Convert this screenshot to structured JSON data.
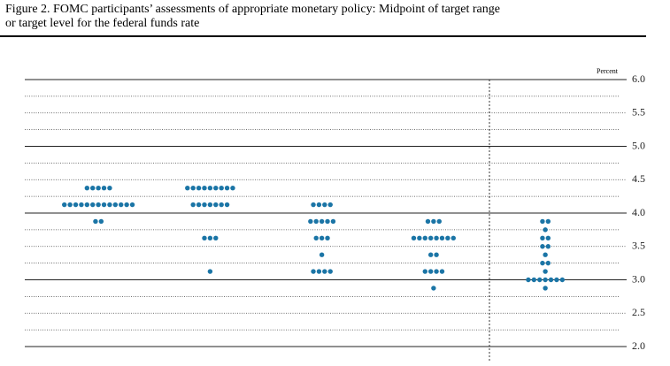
{
  "chart_data": {
    "type": "dot",
    "title_lines": [
      "Figure 2. FOMC participants’ assessments of appropriate monetary policy: Midpoint of target range",
      "or target level for the federal funds rate"
    ],
    "unit_label": "Percent",
    "color": "#1b75a6",
    "columns": [
      {
        "values": [
          4.375,
          4.125,
          3.875
        ],
        "counts": [
          5,
          13,
          2
        ]
      },
      {
        "values": [
          4.375,
          4.125,
          3.625,
          3.125
        ],
        "counts": [
          9,
          7,
          3,
          1
        ]
      },
      {
        "values": [
          4.125,
          3.875,
          3.625,
          3.375,
          3.125
        ],
        "counts": [
          4,
          5,
          3,
          1,
          4
        ]
      },
      {
        "values": [
          3.875,
          3.625,
          3.375,
          3.125,
          2.875
        ],
        "counts": [
          3,
          8,
          2,
          4,
          1
        ]
      },
      {
        "values": [
          3.875,
          3.75,
          3.625,
          3.5,
          3.375,
          3.25,
          3.125,
          3.0,
          2.875
        ],
        "counts": [
          2,
          1,
          2,
          2,
          1,
          2,
          1,
          7,
          1
        ]
      }
    ],
    "divider_before_column": 4,
    "ylim": [
      2,
      6
    ],
    "yticks": [
      {
        "value": 2,
        "label": "2.0"
      },
      2.5,
      {
        "value": 3,
        "label": "3.0"
      },
      3.5,
      {
        "value": 4,
        "label": "4.0"
      },
      4.5,
      {
        "value": 5,
        "label": "5.0"
      },
      5.5,
      {
        "value": 6,
        "label": "6.0"
      }
    ],
    "minor_yticks": [
      2.25,
      2.75,
      3.25,
      3.75,
      4.25,
      4.75,
      5.25,
      5.75
    ],
    "grid": true
  }
}
